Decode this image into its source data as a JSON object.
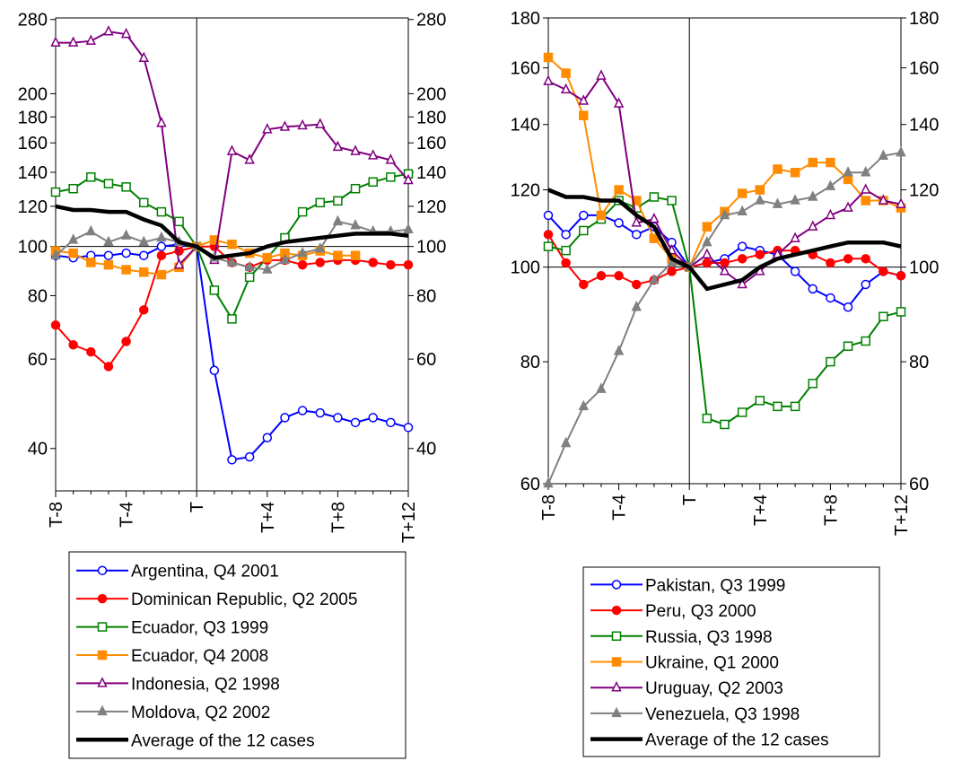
{
  "chart_data": [
    {
      "type": "line",
      "yscale": "log",
      "x_ticks": [
        "T-8",
        "T-4",
        "T",
        "T+4",
        "T+8",
        "T+12"
      ],
      "y_ticks": [
        40,
        60,
        80,
        100,
        120,
        140,
        160,
        180,
        200,
        280
      ],
      "ylim": [
        33,
        282
      ],
      "reference_line": 100,
      "series": [
        {
          "name": "Argentina, Q4 2001",
          "color": "#0000ff",
          "marker": "circle-open",
          "values": [
            96,
            95,
            96,
            96,
            97,
            96,
            100,
            101,
            100,
            57,
            38,
            38.5,
            42,
            46,
            47.5,
            47,
            46,
            45,
            46,
            45,
            44
          ]
        },
        {
          "name": "Dominican Republic, Q2 2005",
          "color": "#ff0000",
          "marker": "circle-filled",
          "values": [
            70,
            64,
            62,
            58,
            65,
            75,
            96,
            98,
            100,
            100,
            93,
            91,
            94,
            94,
            92,
            93,
            94,
            94,
            93,
            92,
            92
          ]
        },
        {
          "name": "Ecuador, Q3 1999",
          "color": "#008000",
          "marker": "square-open",
          "values": [
            128,
            130,
            137,
            133,
            131,
            122,
            117,
            112,
            100,
            82,
            72,
            87,
            95,
            104,
            117,
            122,
            123,
            130,
            134,
            137,
            139
          ]
        },
        {
          "name": "Ecuador, Q4 2008",
          "color": "#ff8c00",
          "marker": "square-filled",
          "values": [
            98,
            97,
            93,
            92,
            90,
            89,
            88,
            91,
            100,
            103,
            101,
            97,
            95,
            97,
            96,
            98,
            96,
            96,
            null,
            null,
            null
          ]
        },
        {
          "name": "Indonesia, Q2 1998",
          "color": "#800080",
          "marker": "triangle-open",
          "values": [
            252,
            252,
            254,
            265,
            262,
            235,
            175,
            92,
            100,
            94,
            154,
            148,
            170,
            172,
            173,
            174,
            157,
            154,
            151,
            148,
            135
          ]
        },
        {
          "name": "Moldova, Q2 2002",
          "color": "#808080",
          "marker": "triangle-filled",
          "values": [
            96,
            103,
            107,
            102,
            105,
            102,
            104,
            102,
            100,
            95,
            93,
            91,
            90,
            94,
            97,
            99,
            112,
            110,
            107,
            107,
            108
          ]
        },
        {
          "name": "Average of the 12 cases",
          "color": "#000000",
          "marker": "none",
          "values": [
            120,
            118,
            118,
            117,
            117,
            113,
            110,
            102,
            100,
            95,
            96,
            97,
            100,
            102,
            103,
            104,
            105,
            106,
            106,
            106,
            105
          ]
        }
      ]
    },
    {
      "type": "line",
      "yscale": "log",
      "x_ticks": [
        "T-8",
        "T-4",
        "T",
        "T+4",
        "T+8",
        "T+12"
      ],
      "y_ticks": [
        60,
        80,
        100,
        120,
        140,
        160,
        180
      ],
      "ylim": [
        60,
        180
      ],
      "reference_line": 100,
      "series": [
        {
          "name": "Pakistan, Q3 1999",
          "color": "#0000ff",
          "marker": "circle-open",
          "values": [
            113,
            108,
            113,
            113,
            111,
            108,
            110,
            106,
            100,
            101,
            102,
            105,
            104,
            103,
            99,
            95,
            93,
            91,
            96,
            99,
            98
          ]
        },
        {
          "name": "Peru, Q3 2000",
          "color": "#ff0000",
          "marker": "circle-filled",
          "values": [
            108,
            101,
            96,
            98,
            98,
            96,
            97,
            99,
            100,
            101,
            101,
            102,
            103,
            104,
            104,
            103,
            101,
            102,
            102,
            99,
            98
          ]
        },
        {
          "name": "Russia, Q3 1998",
          "color": "#008000",
          "marker": "square-open",
          "values": [
            105,
            104,
            109,
            112,
            117,
            115,
            118,
            117,
            100,
            70,
            69,
            71,
            73,
            72,
            72,
            76,
            80,
            83,
            84,
            89,
            90
          ]
        },
        {
          "name": "Ukraine, Q1 2000",
          "color": "#ff8c00",
          "marker": "square-filled",
          "values": [
            164,
            158,
            143,
            113,
            120,
            117,
            107,
            102,
            100,
            110,
            114,
            119,
            120,
            126,
            125,
            128,
            128,
            123,
            117,
            117,
            115
          ]
        },
        {
          "name": "Uruguay, Q2 2003",
          "color": "#800080",
          "marker": "triangle-open",
          "values": [
            155,
            152,
            148,
            157,
            147,
            111,
            112,
            104,
            100,
            103,
            99,
            96,
            99,
            103,
            107,
            110,
            113,
            115,
            120,
            117,
            116
          ]
        },
        {
          "name": "Venezuela, Q3 1998",
          "color": "#808080",
          "marker": "triangle-filled",
          "values": [
            60,
            66,
            72,
            75,
            82,
            91,
            97,
            101,
            100,
            106,
            113,
            114,
            117,
            116,
            117,
            118,
            121,
            125,
            125,
            130,
            131
          ]
        },
        {
          "name": "Average of the 12 cases",
          "color": "#000000",
          "marker": "none",
          "values": [
            120,
            118,
            118,
            117,
            117,
            113,
            110,
            102,
            100,
            95,
            96,
            97,
            100,
            102,
            103,
            104,
            105,
            106,
            106,
            106,
            105
          ]
        }
      ]
    }
  ]
}
